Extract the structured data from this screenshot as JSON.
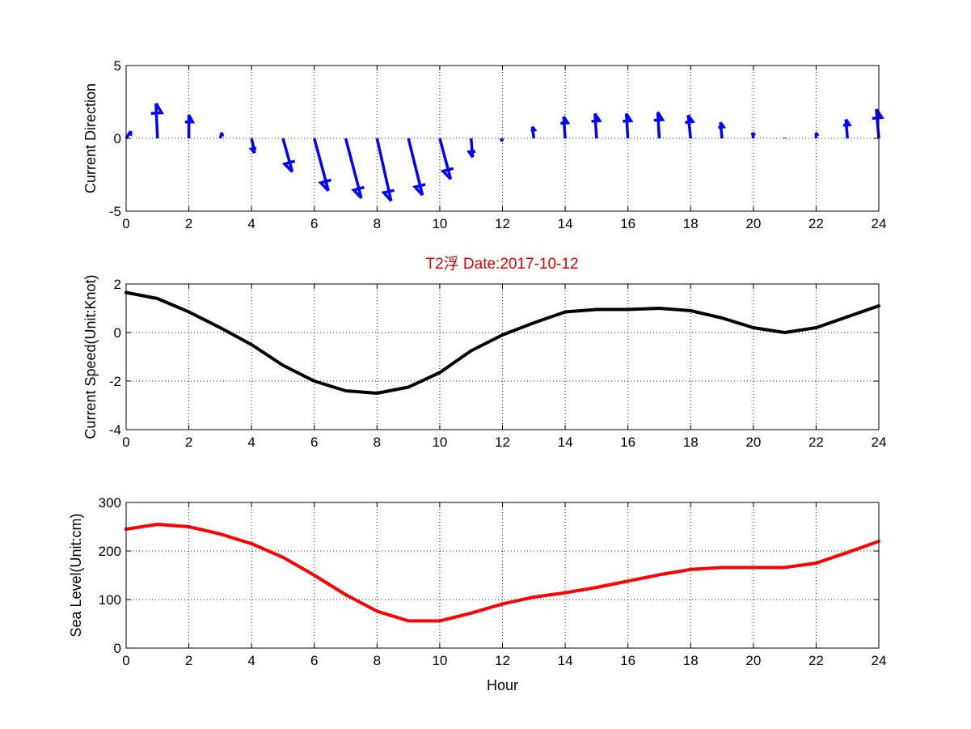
{
  "figure": {
    "title": "T2浮   Date:2017-10-12",
    "title_color": "#e00000",
    "grid": true
  },
  "chart_data": [
    {
      "type": "quiver",
      "ylabel": "Current Direction",
      "xlabel": "",
      "xlim": [
        0,
        24
      ],
      "ylim": [
        -5,
        5
      ],
      "xticks": [
        0,
        2,
        4,
        6,
        8,
        10,
        12,
        14,
        16,
        18,
        20,
        22,
        24
      ],
      "yticks": [
        -5,
        0,
        5
      ],
      "color": "#0000ff",
      "series": [
        {
          "x": [
            0,
            1,
            2,
            3,
            4,
            5,
            6,
            7,
            8,
            9,
            10,
            11,
            12,
            13,
            14,
            15,
            16,
            17,
            18,
            19,
            20,
            21,
            22,
            23,
            24
          ],
          "u": [
            0.15,
            -0.05,
            0.0,
            0.05,
            0.1,
            0.3,
            0.45,
            0.5,
            0.45,
            0.45,
            0.35,
            0.05,
            -0.02,
            -0.05,
            -0.05,
            -0.05,
            -0.05,
            -0.05,
            -0.08,
            -0.05,
            -0.03,
            0.0,
            0.0,
            -0.05,
            -0.08
          ],
          "v": [
            0.5,
            2.4,
            1.6,
            0.4,
            -1.0,
            -2.3,
            -3.6,
            -4.1,
            -4.3,
            -3.9,
            -2.8,
            -1.3,
            -0.2,
            0.8,
            1.5,
            1.7,
            1.7,
            1.8,
            1.6,
            1.1,
            0.4,
            0.05,
            0.4,
            1.3,
            2.0
          ]
        }
      ]
    },
    {
      "type": "line",
      "ylabel": "Current Speed(Unit:Knot)",
      "xlabel": "",
      "xlim": [
        0,
        24
      ],
      "ylim": [
        -4,
        2
      ],
      "xticks": [
        0,
        2,
        4,
        6,
        8,
        10,
        12,
        14,
        16,
        18,
        20,
        22,
        24
      ],
      "yticks": [
        -4,
        -2,
        0,
        2
      ],
      "series": [
        {
          "color": "#000000",
          "x": [
            0,
            1,
            2,
            3,
            4,
            5,
            6,
            7,
            8,
            9,
            10,
            11,
            12,
            13,
            14,
            15,
            16,
            17,
            18,
            19,
            20,
            21,
            22,
            23,
            24
          ],
          "values": [
            1.65,
            1.4,
            0.85,
            0.2,
            -0.5,
            -1.35,
            -2.0,
            -2.4,
            -2.5,
            -2.25,
            -1.65,
            -0.75,
            -0.1,
            0.4,
            0.85,
            0.95,
            0.95,
            1.0,
            0.9,
            0.6,
            0.2,
            0.0,
            0.2,
            0.65,
            1.1
          ]
        }
      ]
    },
    {
      "type": "line",
      "ylabel": "Sea Level(Unit:cm)",
      "xlabel": "Hour",
      "xlim": [
        0,
        24
      ],
      "ylim": [
        0,
        300
      ],
      "xticks": [
        0,
        2,
        4,
        6,
        8,
        10,
        12,
        14,
        16,
        18,
        20,
        22,
        24
      ],
      "yticks": [
        0,
        100,
        200,
        300
      ],
      "series": [
        {
          "color": "#ff0000",
          "x": [
            0,
            1,
            2,
            3,
            4,
            5,
            6,
            7,
            8,
            9,
            10,
            11,
            12,
            13,
            14,
            15,
            16,
            17,
            18,
            19,
            20,
            21,
            22,
            23,
            24
          ],
          "values": [
            245,
            255,
            250,
            235,
            215,
            187,
            150,
            110,
            76,
            56,
            56,
            72,
            91,
            105,
            114,
            125,
            138,
            151,
            162,
            166,
            166,
            166,
            175,
            197,
            220
          ]
        }
      ]
    }
  ]
}
